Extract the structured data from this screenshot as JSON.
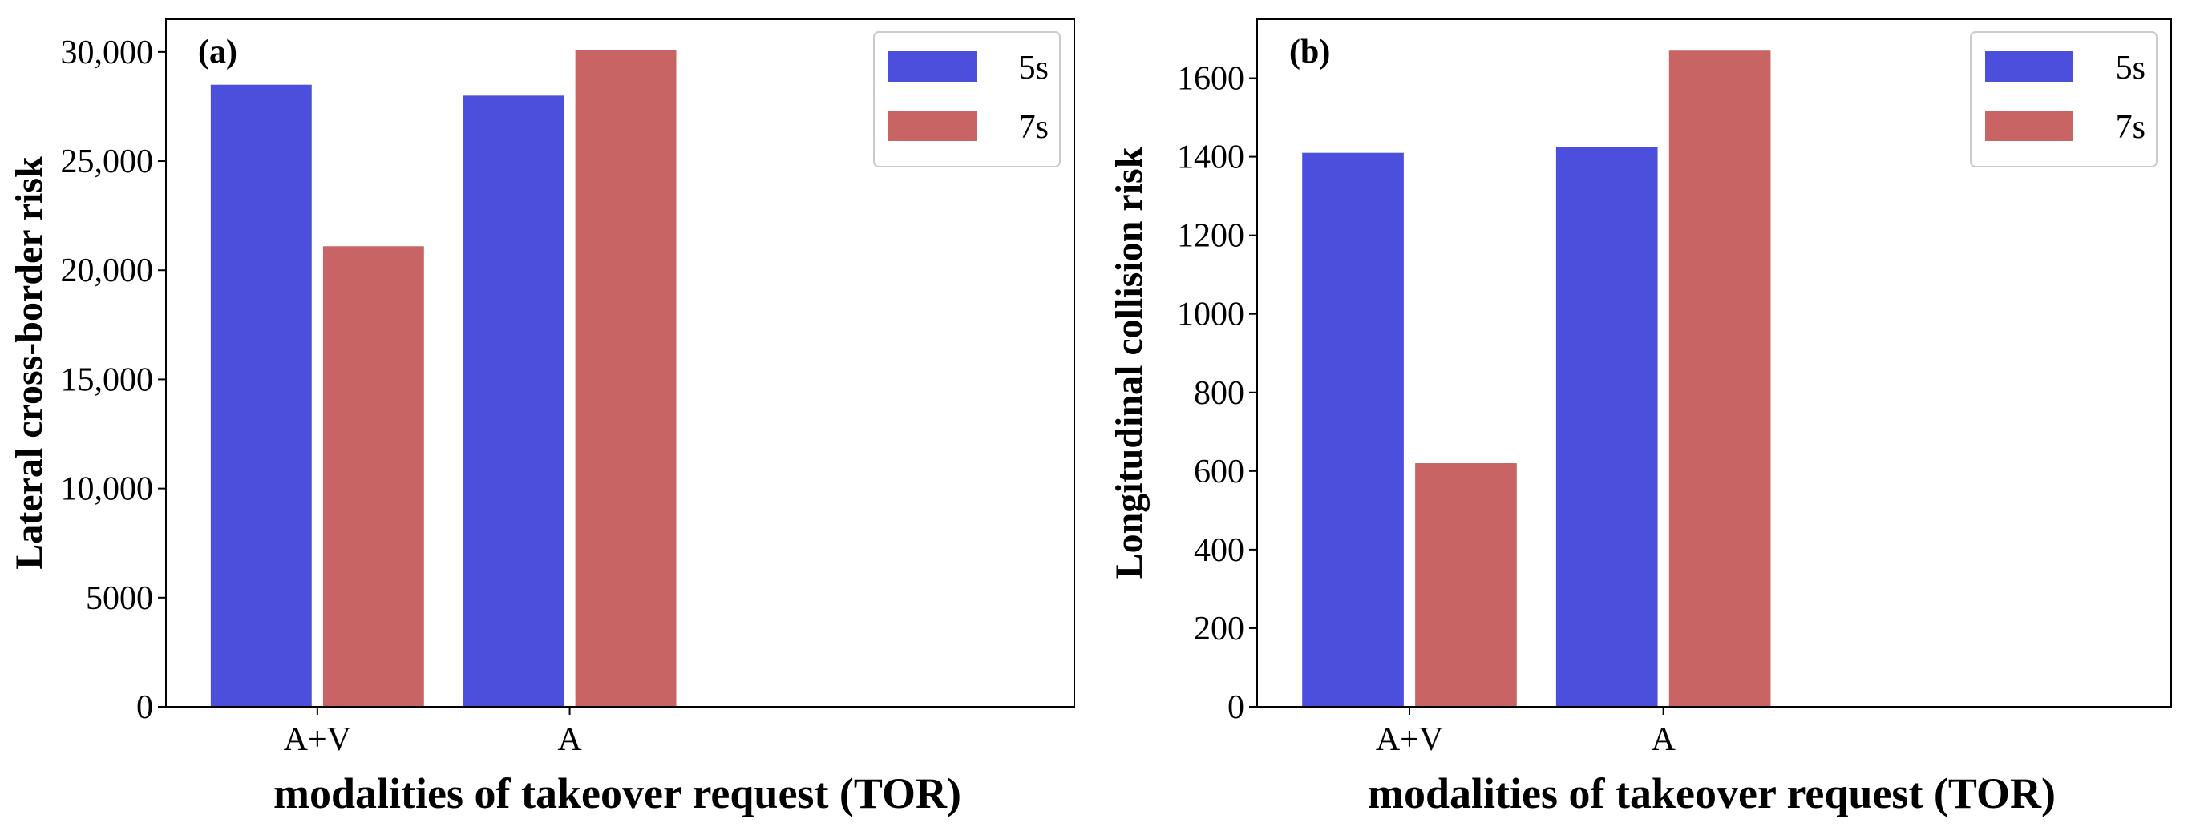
{
  "chart_data": [
    {
      "type": "bar",
      "panel_label": "(a)",
      "categories": [
        "A+V",
        "A"
      ],
      "series": [
        {
          "name": "5s",
          "color": "#4b4fdc",
          "values": [
            28500,
            28000
          ]
        },
        {
          "name": "7s",
          "color": "#c96464",
          "values": [
            21100,
            30100
          ]
        }
      ],
      "xlabel": "modalities of takeover request (TOR)",
      "ylabel": "Lateral cross-border risk",
      "ylim": [
        0,
        31500
      ],
      "yticks": [
        0,
        5000,
        10000,
        15000,
        20000,
        25000,
        30000
      ],
      "ytick_labels": [
        "0",
        "5000",
        "10,000",
        "15,000",
        "20,000",
        "25,000",
        "30,000"
      ],
      "legend_position": "top-right",
      "grid": false
    },
    {
      "type": "bar",
      "panel_label": "(b)",
      "categories": [
        "A+V",
        "A"
      ],
      "series": [
        {
          "name": "5s",
          "color": "#4b4fdc",
          "values": [
            1410,
            1425
          ]
        },
        {
          "name": "7s",
          "color": "#c96464",
          "values": [
            620,
            1670
          ]
        }
      ],
      "xlabel": "modalities of takeover request (TOR)",
      "ylabel": "Longitudinal collision risk",
      "ylim": [
        0,
        1750
      ],
      "yticks": [
        0,
        200,
        400,
        600,
        800,
        1000,
        1200,
        1400,
        1600
      ],
      "ytick_labels": [
        "0",
        "200",
        "400",
        "600",
        "800",
        "1000",
        "1200",
        "1400",
        "1600"
      ],
      "legend_position": "top-right",
      "grid": false
    }
  ]
}
